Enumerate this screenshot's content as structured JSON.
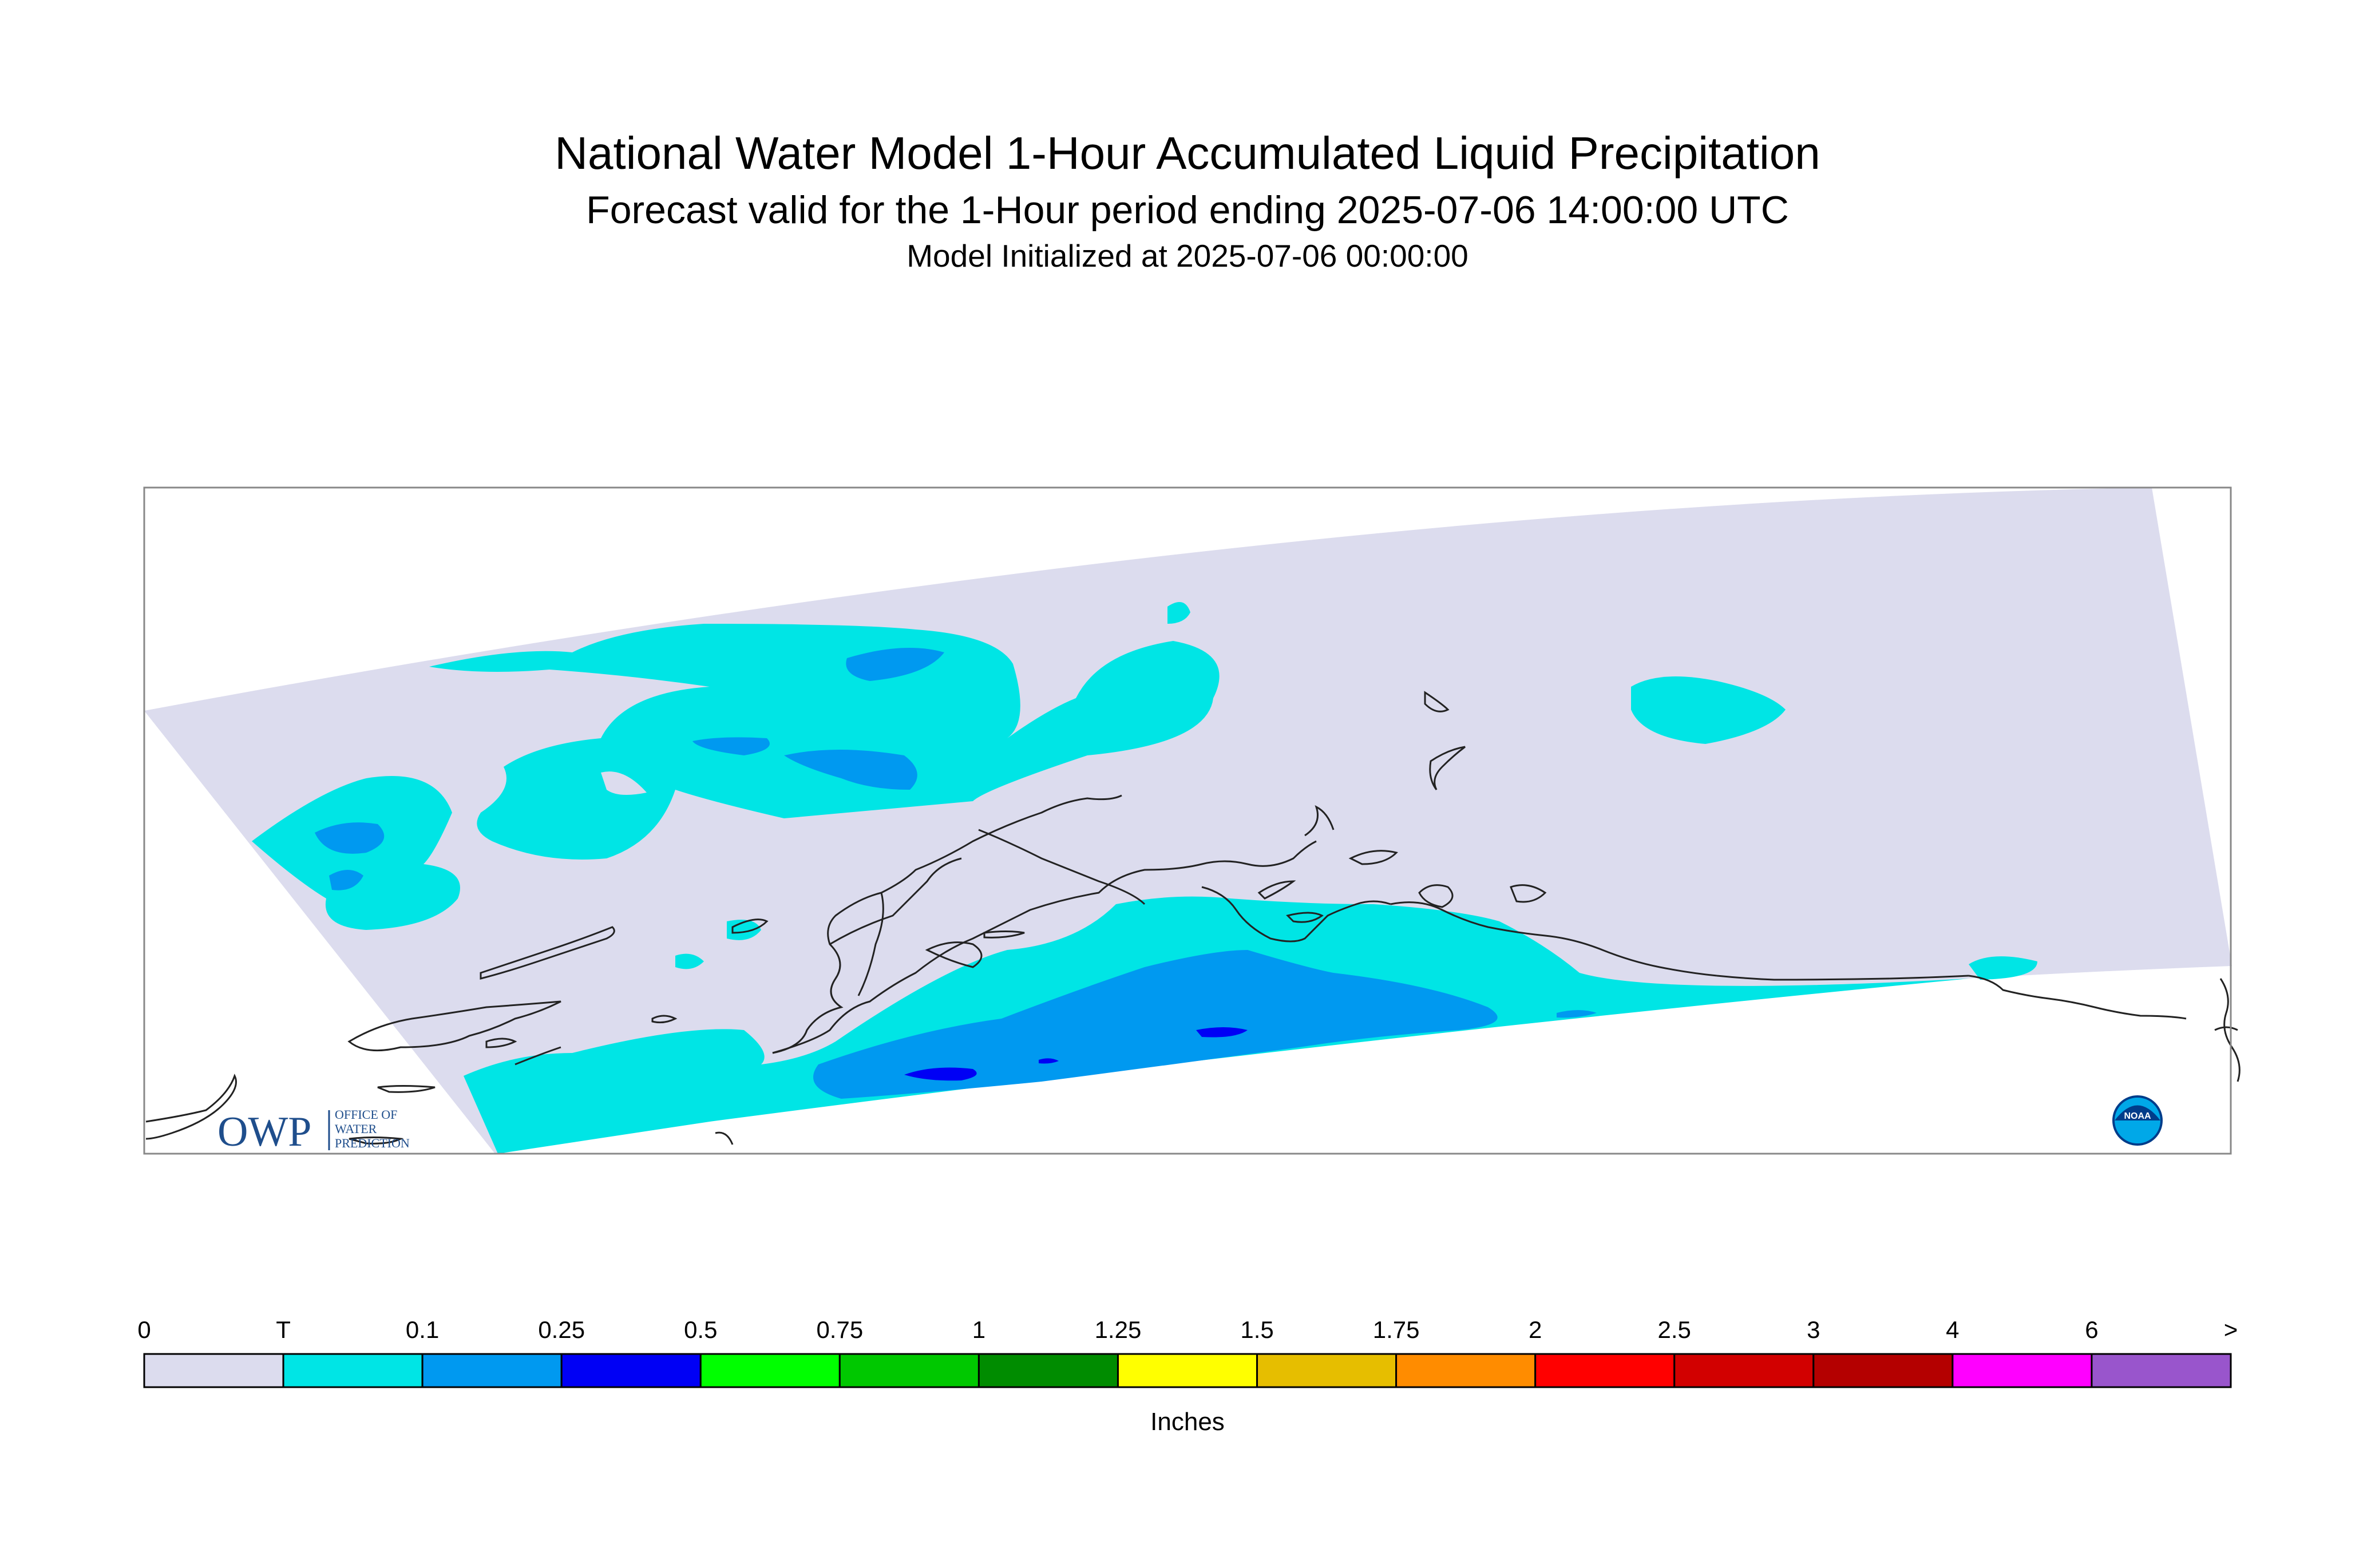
{
  "title": "National Water Model 1-Hour Accumulated Liquid Precipitation",
  "subtitle": "Forecast valid for the 1-Hour period ending 2025-07-06 14:00:00 UTC",
  "init_line": "Model Initialized at 2025-07-06 00:00:00",
  "logos": {
    "owp_mark": "OWP",
    "owp_text": [
      "OFFICE OF",
      "WATER",
      "PREDICTION"
    ],
    "noaa_mark": "NOAA"
  },
  "colorbar": {
    "units": "Inches",
    "tick_labels": [
      "0",
      "T",
      "0.1",
      "0.25",
      "0.5",
      "0.75",
      "1",
      "1.25",
      "1.5",
      "1.75",
      "2",
      "2.5",
      "3",
      "4",
      "6",
      ">"
    ],
    "colors": [
      "#dcdcee",
      "#00e5e5",
      "#0099f0",
      "#0000f5",
      "#00ff00",
      "#00c800",
      "#008c00",
      "#ffff00",
      "#e6be00",
      "#ff8c00",
      "#ff0000",
      "#d20000",
      "#b40000",
      "#ff00ff",
      "#9955cc"
    ]
  },
  "map_colors": {
    "no_precip": "#dcdcee",
    "trace": "#00e5e5",
    "light": "#0099f0",
    "moderate": "#0000f5",
    "coastline": "#222222",
    "frame": "#888888"
  }
}
